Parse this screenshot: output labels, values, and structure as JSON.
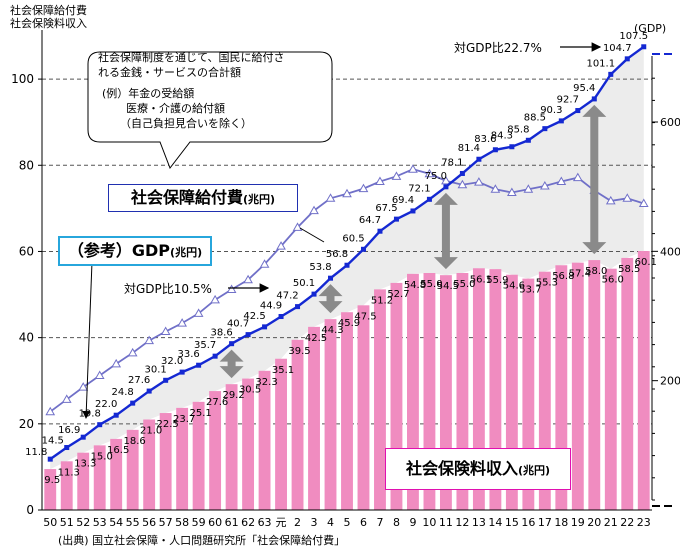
{
  "texts": {
    "ytitle_line1": "社会保障給付費",
    "ytitle_line2": "社会保険料収入",
    "gdp_unit": "(GDP)",
    "callout_line1": "社会保障制度を通じて、国民に給付さ",
    "callout_line2": "れる金銭・サービスの合計額",
    "callout_line3": "(例）年金の受給額",
    "callout_line4": "医療・介護の給付額",
    "callout_line5": "（自己負担見合いを除く）",
    "benefit_label": "社会保障給付費",
    "benefit_unit": "(兆円)",
    "gdp_label": "（参考）GDP",
    "gdp_label_unit": "(兆円)",
    "ins_label": "社会保険料収入",
    "ins_unit": "(兆円)",
    "ratio_top": "対GDP比22.7%",
    "ratio_mid": "対GDP比10.5%",
    "source": "(出典) 国立社会保障・人口問題研究所「社会保障給付費」"
  },
  "chart_data": {
    "type": "bar+line",
    "categories": [
      "50",
      "51",
      "52",
      "53",
      "54",
      "55",
      "56",
      "57",
      "58",
      "59",
      "60",
      "61",
      "62",
      "63",
      "元",
      "2",
      "3",
      "4",
      "5",
      "6",
      "7",
      "8",
      "9",
      "10",
      "11",
      "12",
      "13",
      "14",
      "15",
      "16",
      "17",
      "18",
      "19",
      "20",
      "21",
      "22",
      "23"
    ],
    "ylim": [
      0,
      110
    ],
    "yticks": [
      0,
      20,
      40,
      60,
      80,
      100
    ],
    "right_axis": {
      "label": "(GDP)",
      "ylim": [
        0,
        733
      ],
      "ticks": [
        200,
        400,
        600
      ]
    },
    "series": [
      {
        "name": "社会保障給付費",
        "type": "line",
        "color": "#1428d2",
        "values": [
          11.8,
          14.5,
          16.9,
          19.8,
          22.0,
          24.8,
          27.6,
          30.1,
          32.0,
          33.6,
          35.7,
          38.6,
          40.7,
          42.5,
          44.9,
          47.2,
          50.1,
          53.8,
          56.8,
          60.5,
          64.7,
          67.5,
          69.4,
          72.1,
          75.0,
          78.1,
          81.4,
          83.6,
          84.3,
          85.8,
          88.5,
          90.3,
          92.7,
          95.4,
          101.1,
          104.7,
          107.5
        ],
        "labels": [
          "11.8",
          "14.5",
          "16.9",
          "19.8",
          "22.0",
          "24.8",
          "27.6",
          "30.1",
          "32.0",
          "33.6",
          "35.7",
          "38.6",
          "40.7",
          "42.5",
          "44.9",
          "47.2",
          "50.1",
          "53.8",
          "56.8",
          "60.5",
          "64.7",
          "67.5",
          "69.4",
          "72.1",
          "75.0",
          "78.1",
          "81.4",
          "83.6",
          "84.3",
          "85.8",
          "88.5",
          "90.3",
          "92.7",
          "95.4",
          "101.1",
          "104.7",
          "107.5"
        ]
      },
      {
        "name": "社会保険料収入",
        "type": "bar",
        "color": "#f08cc0",
        "values": [
          9.5,
          11.3,
          13.3,
          15.0,
          16.5,
          18.6,
          21.0,
          22.5,
          23.7,
          25.1,
          27.6,
          29.2,
          30.5,
          32.3,
          35.1,
          39.5,
          42.5,
          44.3,
          45.9,
          47.5,
          51.2,
          52.7,
          54.8,
          55.0,
          54.5,
          55.0,
          56.1,
          55.9,
          54.6,
          53.7,
          55.3,
          56.8,
          57.4,
          58.0,
          56.0,
          58.5,
          60.1
        ],
        "labels": [
          "9.5",
          "11.3",
          "13.3",
          "15.0",
          "16.5",
          "18.6",
          "21.0",
          "22.5",
          "23.7",
          "25.1",
          "27.6",
          "29.2",
          "30.5",
          "32.3",
          "35.1",
          "39.5",
          "42.5",
          "44.3",
          "45.9",
          "47.5",
          "51.2",
          "52.7",
          "54.8",
          "55.0",
          "54.5",
          "55.0",
          "56.1",
          "55.9",
          "54.6",
          "53.7",
          "55.3",
          "56.8",
          "57.4",
          "58.0",
          "56.0",
          "58.5",
          "60.1"
        ]
      },
      {
        "name": "GDP",
        "type": "line",
        "color": "#7070c8",
        "axis": "right",
        "values": [
          152,
          171,
          190,
          208,
          226,
          243,
          262,
          276,
          289,
          304,
          325,
          341,
          356,
          380,
          408,
          437,
          463,
          482,
          489,
          497,
          508,
          516,
          527,
          520,
          509,
          503,
          507,
          496,
          491,
          496,
          501,
          508,
          514,
          494,
          478,
          482,
          474
        ]
      }
    ]
  }
}
